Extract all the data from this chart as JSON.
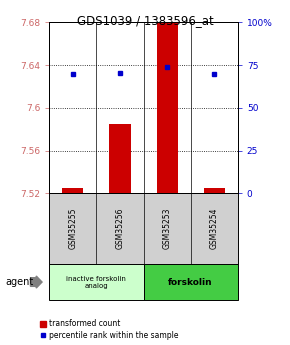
{
  "title": "GDS1039 / 1383596_at",
  "categories": [
    "GSM35255",
    "GSM35256",
    "GSM35253",
    "GSM35254"
  ],
  "bar_values": [
    7.525,
    7.585,
    7.682,
    7.525
  ],
  "bar_base": 7.52,
  "blue_dots": [
    7.632,
    7.633,
    7.638,
    7.632
  ],
  "ylim_left": [
    7.52,
    7.68
  ],
  "yticks_left": [
    7.52,
    7.56,
    7.6,
    7.64,
    7.68
  ],
  "yticks_right": [
    0,
    25,
    50,
    75,
    100
  ],
  "bar_color": "#cc0000",
  "dot_color": "#0000cc",
  "group1_label": "inactive forskolin\nanalog",
  "group2_label": "forskolin",
  "group1_color": "#ccffcc",
  "group2_color": "#44cc44",
  "agent_label": "agent",
  "legend_bar_label": "transformed count",
  "legend_dot_label": "percentile rank within the sample",
  "bg_color": "#ffffff",
  "plot_bg": "#ffffff",
  "left_tick_color": "#cc6666",
  "right_tick_color": "#0000cc",
  "bar_width": 0.45
}
